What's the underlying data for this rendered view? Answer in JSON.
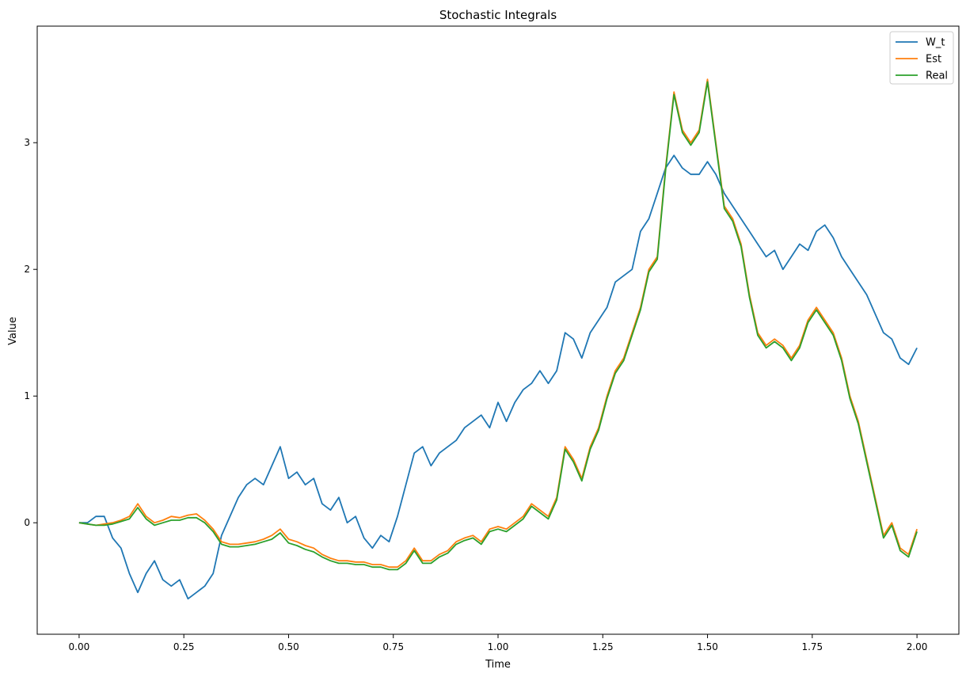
{
  "chart_data": {
    "type": "line",
    "title": "Stochastic Integrals",
    "xlabel": "Time",
    "ylabel": "Value",
    "xlim": [
      -0.1,
      2.1
    ],
    "ylim": [
      -0.88,
      3.92
    ],
    "xticks": [
      0.0,
      0.25,
      0.5,
      0.75,
      1.0,
      1.25,
      1.5,
      1.75,
      2.0
    ],
    "xtick_labels": [
      "0.00",
      "0.25",
      "0.50",
      "0.75",
      "1.00",
      "1.25",
      "1.50",
      "1.75",
      "2.00"
    ],
    "yticks": [
      0,
      1,
      2,
      3
    ],
    "ytick_labels": [
      "0",
      "1",
      "2",
      "3"
    ],
    "grid": false,
    "legend_position": "top-right",
    "series": [
      {
        "name": "W_t",
        "color": "#1f77b4",
        "x": [
          0.0,
          0.02,
          0.04,
          0.06,
          0.08,
          0.1,
          0.12,
          0.14,
          0.16,
          0.18,
          0.2,
          0.22,
          0.24,
          0.26,
          0.28,
          0.3,
          0.32,
          0.34,
          0.36,
          0.38,
          0.4,
          0.42,
          0.44,
          0.46,
          0.48,
          0.5,
          0.52,
          0.54,
          0.56,
          0.58,
          0.6,
          0.62,
          0.64,
          0.66,
          0.68,
          0.7,
          0.72,
          0.74,
          0.76,
          0.78,
          0.8,
          0.82,
          0.84,
          0.86,
          0.88,
          0.9,
          0.92,
          0.94,
          0.96,
          0.98,
          1.0,
          1.02,
          1.04,
          1.06,
          1.08,
          1.1,
          1.12,
          1.14,
          1.16,
          1.18,
          1.2,
          1.22,
          1.24,
          1.26,
          1.28,
          1.3,
          1.32,
          1.34,
          1.36,
          1.38,
          1.4,
          1.42,
          1.44,
          1.46,
          1.48,
          1.5,
          1.52,
          1.54,
          1.56,
          1.58,
          1.6,
          1.62,
          1.64,
          1.66,
          1.68,
          1.7,
          1.72,
          1.74,
          1.76,
          1.78,
          1.8,
          1.82,
          1.84,
          1.86,
          1.88,
          1.9,
          1.92,
          1.94,
          1.96,
          1.98,
          2.0
        ],
        "y": [
          0.0,
          0.0,
          0.05,
          0.05,
          -0.12,
          -0.2,
          -0.4,
          -0.55,
          -0.4,
          -0.3,
          -0.45,
          -0.5,
          -0.45,
          -0.6,
          -0.55,
          -0.5,
          -0.4,
          -0.1,
          0.05,
          0.2,
          0.3,
          0.35,
          0.3,
          0.45,
          0.6,
          0.35,
          0.4,
          0.3,
          0.35,
          0.15,
          0.1,
          0.2,
          0.0,
          0.05,
          -0.12,
          -0.2,
          -0.1,
          -0.15,
          0.05,
          0.3,
          0.55,
          0.6,
          0.45,
          0.55,
          0.6,
          0.65,
          0.75,
          0.8,
          0.85,
          0.75,
          0.95,
          0.8,
          0.95,
          1.05,
          1.1,
          1.2,
          1.1,
          1.2,
          1.5,
          1.45,
          1.3,
          1.5,
          1.6,
          1.7,
          1.9,
          1.95,
          2.0,
          2.3,
          2.4,
          2.6,
          2.8,
          2.9,
          2.8,
          2.75,
          2.75,
          2.85,
          2.75,
          2.6,
          2.5,
          2.4,
          2.3,
          2.2,
          2.1,
          2.15,
          2.0,
          2.1,
          2.2,
          2.15,
          2.3,
          2.35,
          2.25,
          2.1,
          2.0,
          1.9,
          1.8,
          1.65,
          1.5,
          1.45,
          1.3,
          1.25,
          1.38
        ]
      },
      {
        "name": "Est",
        "color": "#ff7f0e",
        "x": [
          0.0,
          0.02,
          0.04,
          0.06,
          0.08,
          0.1,
          0.12,
          0.14,
          0.16,
          0.18,
          0.2,
          0.22,
          0.24,
          0.26,
          0.28,
          0.3,
          0.32,
          0.34,
          0.36,
          0.38,
          0.4,
          0.42,
          0.44,
          0.46,
          0.48,
          0.5,
          0.52,
          0.54,
          0.56,
          0.58,
          0.6,
          0.62,
          0.64,
          0.66,
          0.68,
          0.7,
          0.72,
          0.74,
          0.76,
          0.78,
          0.8,
          0.82,
          0.84,
          0.86,
          0.88,
          0.9,
          0.92,
          0.94,
          0.96,
          0.98,
          1.0,
          1.02,
          1.04,
          1.06,
          1.08,
          1.1,
          1.12,
          1.14,
          1.16,
          1.18,
          1.2,
          1.22,
          1.24,
          1.26,
          1.28,
          1.3,
          1.32,
          1.34,
          1.36,
          1.38,
          1.4,
          1.42,
          1.44,
          1.46,
          1.48,
          1.5,
          1.52,
          1.54,
          1.56,
          1.58,
          1.6,
          1.62,
          1.64,
          1.66,
          1.68,
          1.7,
          1.72,
          1.74,
          1.76,
          1.78,
          1.8,
          1.82,
          1.84,
          1.86,
          1.88,
          1.9,
          1.92,
          1.94,
          1.96,
          1.98,
          2.0
        ],
        "y": [
          0.0,
          -0.01,
          -0.02,
          -0.01,
          0.0,
          0.02,
          0.05,
          0.15,
          0.05,
          0.0,
          0.02,
          0.05,
          0.04,
          0.06,
          0.07,
          0.02,
          -0.05,
          -0.15,
          -0.17,
          -0.17,
          -0.16,
          -0.15,
          -0.13,
          -0.1,
          -0.05,
          -0.13,
          -0.15,
          -0.18,
          -0.2,
          -0.25,
          -0.28,
          -0.3,
          -0.3,
          -0.31,
          -0.31,
          -0.33,
          -0.33,
          -0.35,
          -0.35,
          -0.3,
          -0.2,
          -0.3,
          -0.3,
          -0.25,
          -0.22,
          -0.15,
          -0.12,
          -0.1,
          -0.15,
          -0.05,
          -0.03,
          -0.05,
          0.0,
          0.05,
          0.15,
          0.1,
          0.05,
          0.2,
          0.6,
          0.5,
          0.35,
          0.6,
          0.75,
          1.0,
          1.2,
          1.3,
          1.5,
          1.7,
          2.0,
          2.1,
          2.8,
          3.4,
          3.1,
          3.0,
          3.1,
          3.5,
          3.0,
          2.5,
          2.4,
          2.2,
          1.8,
          1.5,
          1.4,
          1.45,
          1.4,
          1.3,
          1.4,
          1.6,
          1.7,
          1.6,
          1.5,
          1.3,
          1.0,
          0.8,
          0.5,
          0.2,
          -0.1,
          0.0,
          -0.2,
          -0.25,
          -0.05
        ]
      },
      {
        "name": "Real",
        "color": "#2ca02c",
        "x": [
          0.0,
          0.02,
          0.04,
          0.06,
          0.08,
          0.1,
          0.12,
          0.14,
          0.16,
          0.18,
          0.2,
          0.22,
          0.24,
          0.26,
          0.28,
          0.3,
          0.32,
          0.34,
          0.36,
          0.38,
          0.4,
          0.42,
          0.44,
          0.46,
          0.48,
          0.5,
          0.52,
          0.54,
          0.56,
          0.58,
          0.6,
          0.62,
          0.64,
          0.66,
          0.68,
          0.7,
          0.72,
          0.74,
          0.76,
          0.78,
          0.8,
          0.82,
          0.84,
          0.86,
          0.88,
          0.9,
          0.92,
          0.94,
          0.96,
          0.98,
          1.0,
          1.02,
          1.04,
          1.06,
          1.08,
          1.1,
          1.12,
          1.14,
          1.16,
          1.18,
          1.2,
          1.22,
          1.24,
          1.26,
          1.28,
          1.3,
          1.32,
          1.34,
          1.36,
          1.38,
          1.4,
          1.42,
          1.44,
          1.46,
          1.48,
          1.5,
          1.52,
          1.54,
          1.56,
          1.58,
          1.6,
          1.62,
          1.64,
          1.66,
          1.68,
          1.7,
          1.72,
          1.74,
          1.76,
          1.78,
          1.8,
          1.82,
          1.84,
          1.86,
          1.88,
          1.9,
          1.92,
          1.94,
          1.96,
          1.98,
          2.0
        ],
        "y": [
          0.0,
          -0.01,
          -0.02,
          -0.02,
          -0.01,
          0.01,
          0.03,
          0.12,
          0.03,
          -0.02,
          0.0,
          0.02,
          0.02,
          0.04,
          0.04,
          0.0,
          -0.07,
          -0.17,
          -0.19,
          -0.19,
          -0.18,
          -0.17,
          -0.15,
          -0.13,
          -0.08,
          -0.16,
          -0.18,
          -0.21,
          -0.23,
          -0.27,
          -0.3,
          -0.32,
          -0.32,
          -0.33,
          -0.33,
          -0.35,
          -0.35,
          -0.37,
          -0.37,
          -0.32,
          -0.22,
          -0.32,
          -0.32,
          -0.27,
          -0.24,
          -0.17,
          -0.14,
          -0.12,
          -0.17,
          -0.07,
          -0.05,
          -0.07,
          -0.02,
          0.03,
          0.13,
          0.08,
          0.03,
          0.18,
          0.58,
          0.48,
          0.33,
          0.58,
          0.73,
          0.98,
          1.18,
          1.28,
          1.48,
          1.68,
          1.98,
          2.08,
          2.78,
          3.38,
          3.08,
          2.98,
          3.08,
          3.48,
          2.98,
          2.48,
          2.38,
          2.18,
          1.78,
          1.48,
          1.38,
          1.43,
          1.38,
          1.28,
          1.38,
          1.58,
          1.68,
          1.58,
          1.48,
          1.28,
          0.98,
          0.78,
          0.48,
          0.18,
          -0.12,
          -0.02,
          -0.22,
          -0.27,
          -0.07
        ]
      }
    ]
  }
}
